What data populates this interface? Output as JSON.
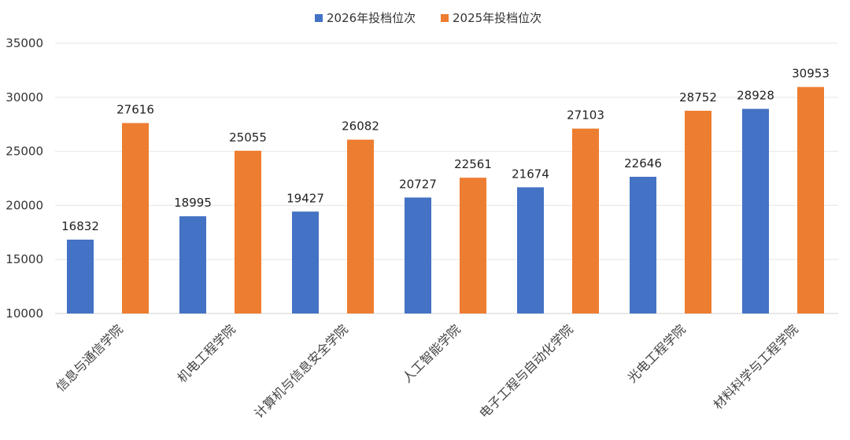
{
  "chart_data": {
    "type": "bar",
    "title": "",
    "xlabel": "",
    "ylabel": "",
    "categories": [
      "信息与通信学院",
      "机电工程学院",
      "计算机与信息安全学院",
      "人工智能学院",
      "电子工程与自动化学院",
      "光电工程学院",
      "材料科学与工程学院"
    ],
    "series": [
      {
        "name": "2026年投档位次",
        "color": "#4472C4",
        "values": [
          16832,
          18995,
          19427,
          20727,
          21674,
          22646,
          28928
        ]
      },
      {
        "name": "2025年投档位次",
        "color": "#ED7D31",
        "values": [
          27616,
          25055,
          26082,
          22561,
          27103,
          28752,
          30953
        ]
      }
    ],
    "ylim": [
      10000,
      35000
    ],
    "yticks": [
      10000,
      15000,
      20000,
      25000,
      30000,
      35000
    ],
    "grid": true,
    "legend": "top-center"
  }
}
